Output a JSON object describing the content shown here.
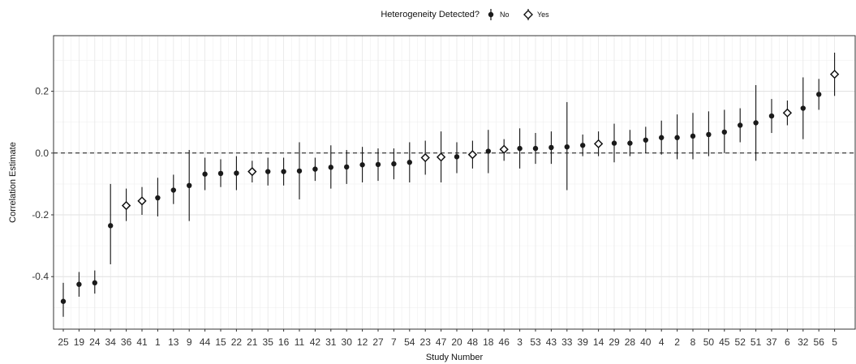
{
  "chart_data": {
    "type": "scatter",
    "title": "",
    "xlabel": "Study Number",
    "ylabel": "Correlation Estimate",
    "ylim": [
      -0.57,
      0.38
    ],
    "yticks": [
      -0.4,
      -0.2,
      0.0,
      0.2
    ],
    "ytick_labels": [
      "-0.4",
      "-0.2",
      "0.0",
      "0.2"
    ],
    "grid": true,
    "reference_line": 0,
    "legend": {
      "title": "Heterogeneity Detected?",
      "placement": "top",
      "entries": [
        {
          "label": "No",
          "marker": "filled-circle"
        },
        {
          "label": "Yes",
          "marker": "open-diamond"
        }
      ]
    },
    "points": [
      {
        "study": "25",
        "est": -0.48,
        "lo": -0.53,
        "hi": -0.42,
        "het": "No"
      },
      {
        "study": "19",
        "est": -0.425,
        "lo": -0.465,
        "hi": -0.385,
        "het": "No"
      },
      {
        "study": "24",
        "est": -0.42,
        "lo": -0.455,
        "hi": -0.38,
        "het": "No"
      },
      {
        "study": "34",
        "est": -0.235,
        "lo": -0.36,
        "hi": -0.1,
        "het": "No"
      },
      {
        "study": "36",
        "est": -0.17,
        "lo": -0.22,
        "hi": -0.115,
        "het": "Yes"
      },
      {
        "study": "41",
        "est": -0.155,
        "lo": -0.2,
        "hi": -0.11,
        "het": "Yes"
      },
      {
        "study": "1",
        "est": -0.145,
        "lo": -0.205,
        "hi": -0.08,
        "het": "No"
      },
      {
        "study": "13",
        "est": -0.12,
        "lo": -0.165,
        "hi": -0.07,
        "het": "No"
      },
      {
        "study": "9",
        "est": -0.105,
        "lo": -0.22,
        "hi": 0.01,
        "het": "No"
      },
      {
        "study": "44",
        "est": -0.068,
        "lo": -0.12,
        "hi": -0.015,
        "het": "No"
      },
      {
        "study": "15",
        "est": -0.066,
        "lo": -0.11,
        "hi": -0.02,
        "het": "No"
      },
      {
        "study": "22",
        "est": -0.065,
        "lo": -0.12,
        "hi": -0.01,
        "het": "No"
      },
      {
        "study": "21",
        "est": -0.06,
        "lo": -0.095,
        "hi": -0.025,
        "het": "Yes"
      },
      {
        "study": "35",
        "est": -0.06,
        "lo": -0.105,
        "hi": -0.015,
        "het": "No"
      },
      {
        "study": "16",
        "est": -0.06,
        "lo": -0.105,
        "hi": -0.015,
        "het": "No"
      },
      {
        "study": "11",
        "est": -0.058,
        "lo": -0.15,
        "hi": 0.035,
        "het": "No"
      },
      {
        "study": "42",
        "est": -0.052,
        "lo": -0.09,
        "hi": -0.015,
        "het": "No"
      },
      {
        "study": "31",
        "est": -0.046,
        "lo": -0.115,
        "hi": 0.025,
        "het": "No"
      },
      {
        "study": "30",
        "est": -0.045,
        "lo": -0.1,
        "hi": 0.01,
        "het": "No"
      },
      {
        "study": "12",
        "est": -0.038,
        "lo": -0.095,
        "hi": 0.02,
        "het": "No"
      },
      {
        "study": "27",
        "est": -0.037,
        "lo": -0.09,
        "hi": 0.015,
        "het": "No"
      },
      {
        "study": "7",
        "est": -0.035,
        "lo": -0.085,
        "hi": 0.015,
        "het": "No"
      },
      {
        "study": "54",
        "est": -0.03,
        "lo": -0.095,
        "hi": 0.035,
        "het": "No"
      },
      {
        "study": "23",
        "est": -0.015,
        "lo": -0.07,
        "hi": 0.04,
        "het": "Yes"
      },
      {
        "study": "47",
        "est": -0.013,
        "lo": -0.095,
        "hi": 0.07,
        "het": "Yes"
      },
      {
        "study": "20",
        "est": -0.012,
        "lo": -0.065,
        "hi": 0.035,
        "het": "No"
      },
      {
        "study": "48",
        "est": -0.005,
        "lo": -0.05,
        "hi": 0.04,
        "het": "Yes"
      },
      {
        "study": "18",
        "est": 0.006,
        "lo": -0.065,
        "hi": 0.075,
        "het": "No"
      },
      {
        "study": "46",
        "est": 0.012,
        "lo": -0.025,
        "hi": 0.045,
        "het": "Yes"
      },
      {
        "study": "3",
        "est": 0.015,
        "lo": -0.05,
        "hi": 0.08,
        "het": "No"
      },
      {
        "study": "53",
        "est": 0.015,
        "lo": -0.035,
        "hi": 0.065,
        "het": "No"
      },
      {
        "study": "43",
        "est": 0.018,
        "lo": -0.035,
        "hi": 0.07,
        "het": "No"
      },
      {
        "study": "33",
        "est": 0.02,
        "lo": -0.12,
        "hi": 0.165,
        "het": "No"
      },
      {
        "study": "39",
        "est": 0.025,
        "lo": -0.01,
        "hi": 0.06,
        "het": "No"
      },
      {
        "study": "14",
        "est": 0.03,
        "lo": -0.01,
        "hi": 0.07,
        "het": "Yes"
      },
      {
        "study": "29",
        "est": 0.032,
        "lo": -0.03,
        "hi": 0.095,
        "het": "No"
      },
      {
        "study": "28",
        "est": 0.032,
        "lo": -0.01,
        "hi": 0.075,
        "het": "No"
      },
      {
        "study": "40",
        "est": 0.042,
        "lo": 0.0,
        "hi": 0.085,
        "het": "No"
      },
      {
        "study": "4",
        "est": 0.05,
        "lo": -0.005,
        "hi": 0.105,
        "het": "No"
      },
      {
        "study": "2",
        "est": 0.05,
        "lo": -0.02,
        "hi": 0.125,
        "het": "No"
      },
      {
        "study": "8",
        "est": 0.055,
        "lo": -0.02,
        "hi": 0.13,
        "het": "No"
      },
      {
        "study": "50",
        "est": 0.06,
        "lo": -0.01,
        "hi": 0.135,
        "het": "No"
      },
      {
        "study": "45",
        "est": 0.068,
        "lo": 0.0,
        "hi": 0.14,
        "het": "No"
      },
      {
        "study": "52",
        "est": 0.09,
        "lo": 0.035,
        "hi": 0.145,
        "het": "No"
      },
      {
        "study": "51",
        "est": 0.098,
        "lo": -0.025,
        "hi": 0.22,
        "het": "No"
      },
      {
        "study": "37",
        "est": 0.12,
        "lo": 0.065,
        "hi": 0.175,
        "het": "No"
      },
      {
        "study": "6",
        "est": 0.13,
        "lo": 0.09,
        "hi": 0.17,
        "het": "Yes"
      },
      {
        "study": "32",
        "est": 0.145,
        "lo": 0.045,
        "hi": 0.245,
        "het": "No"
      },
      {
        "study": "56",
        "est": 0.19,
        "lo": 0.14,
        "hi": 0.24,
        "het": "No"
      },
      {
        "study": "5",
        "est": 0.255,
        "lo": 0.185,
        "hi": 0.325,
        "het": "Yes"
      }
    ]
  }
}
